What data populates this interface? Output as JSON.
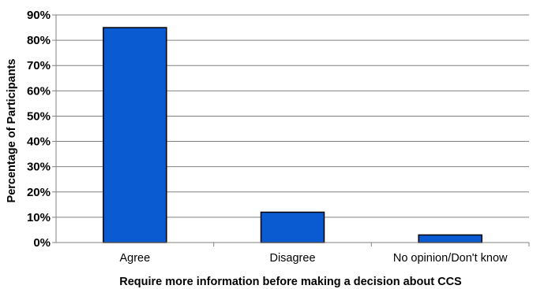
{
  "chart_data": {
    "type": "bar",
    "title": "",
    "xlabel": "Require more information before making a decision about CCS",
    "ylabel": "Percentage of Participants",
    "categories": [
      "Agree",
      "Disagree",
      "No opinion/Don't know"
    ],
    "values": [
      85,
      12,
      3
    ],
    "y_ticks": [
      "0%",
      "10%",
      "20%",
      "30%",
      "40%",
      "50%",
      "60%",
      "70%",
      "80%",
      "90%"
    ],
    "ylim": [
      0,
      90
    ],
    "grid": true,
    "bar_color": "#0a5ad2",
    "bar_edge_color": "#000000"
  }
}
